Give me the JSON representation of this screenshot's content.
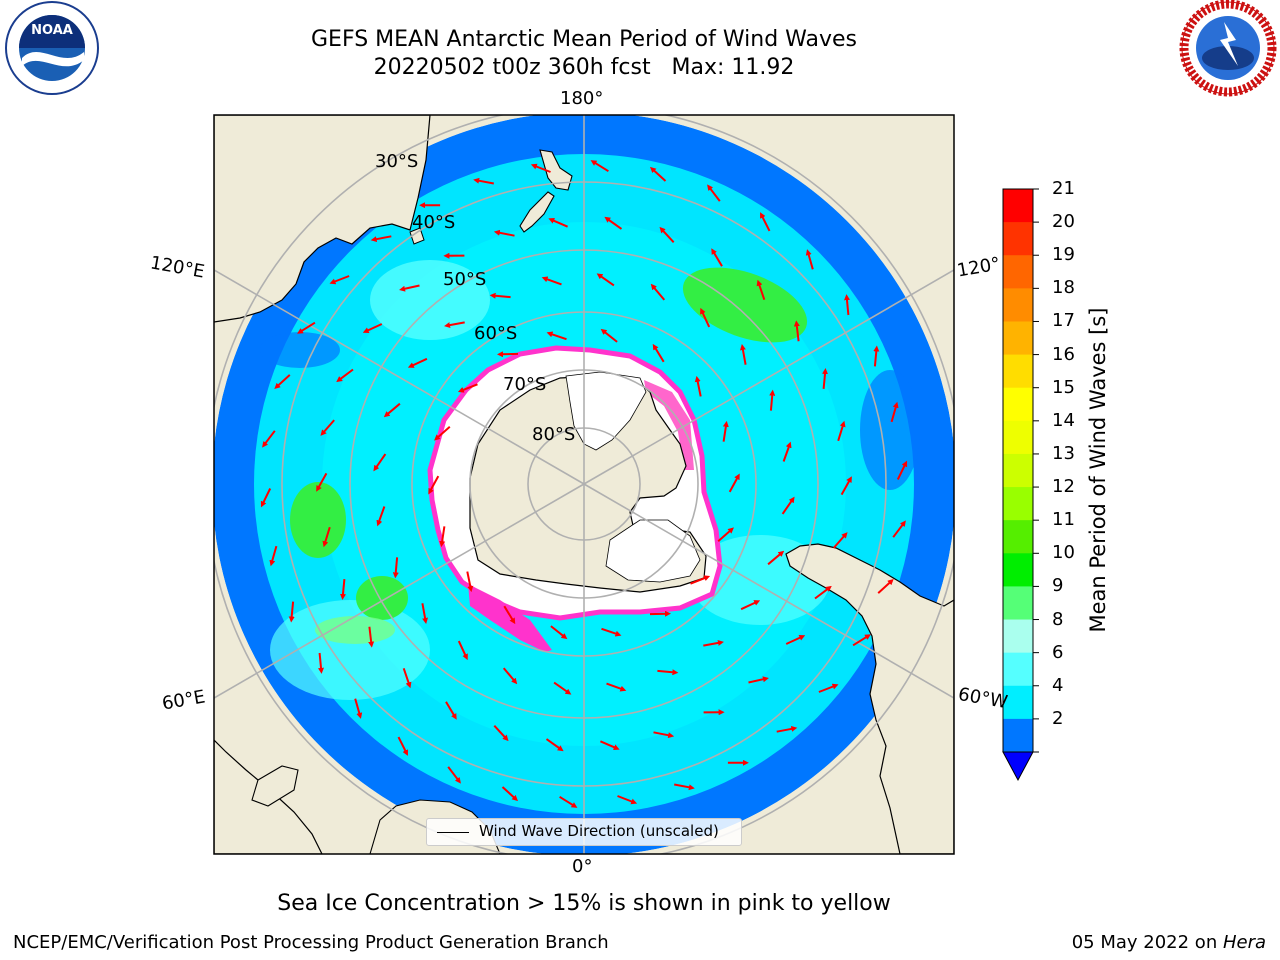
{
  "header": {
    "title_line1": "GEFS MEAN Antarctic Mean Period of Wind Waves",
    "title_line2": "20220502 t00z 360h fcst   Max: 11.92"
  },
  "logos": {
    "left": "noaa-logo",
    "right": "national-weather-service-logo"
  },
  "map": {
    "projection": "south-polar-stereographic",
    "longitude_labels": {
      "top": "180°",
      "left_upper": "120°E",
      "left_lower": "60°E",
      "right_upper": "120°",
      "right_lower": "60°W",
      "bottom": "0°"
    },
    "latitude_labels": [
      "30°S",
      "40°S",
      "50°S",
      "60°S",
      "70°S",
      "80°S"
    ],
    "legend_label": "Wind Wave Direction (unscaled)",
    "colors": {
      "land": "#efebd8",
      "ocean_low": "#0077ff",
      "ocean_mid": "#00e5ff",
      "ocean_light": "#66ffff",
      "ice_pink": "#ff33cc",
      "arrows": "#ff0000",
      "grid": "#b0b0b0"
    }
  },
  "colorbar": {
    "title": "Mean Period of Wind Waves [s]",
    "ticks": [
      "21",
      "20",
      "19",
      "18",
      "17",
      "16",
      "15",
      "14",
      "13",
      "12",
      "11",
      "10",
      "9",
      "8",
      "6",
      "4",
      "2"
    ],
    "colors": [
      "#ff0000",
      "#ff3300",
      "#ff6600",
      "#ff8c00",
      "#ffb300",
      "#ffdd00",
      "#ffff00",
      "#eeff00",
      "#ccff00",
      "#99ff00",
      "#55ee00",
      "#00ee00",
      "#55ff77",
      "#aaffee",
      "#55ffff",
      "#00eeff",
      "#0077ff"
    ],
    "under_color": "#0000ff"
  },
  "caption": "Sea Ice Concentration > 15% is shown in pink to yellow",
  "footer": {
    "left": "NCEP/EMC/Verification Post Processing Product Generation Branch",
    "date": "05 May 2022 on ",
    "host": "Hera"
  }
}
